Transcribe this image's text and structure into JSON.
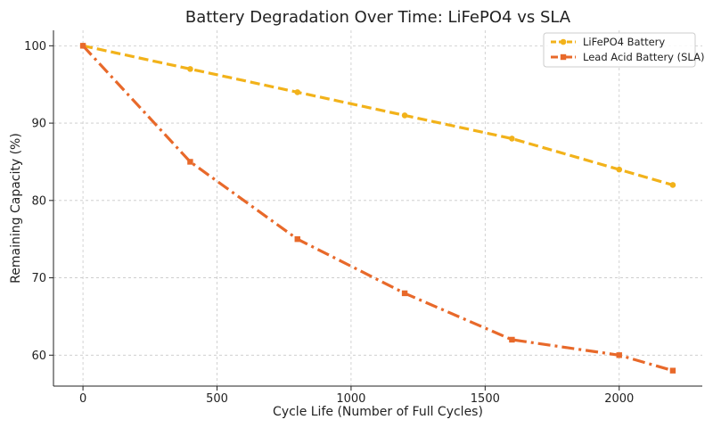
{
  "chart_data": {
    "type": "line",
    "title": "Battery Degradation Over Time: LiFePO4 vs SLA",
    "xlabel": "Cycle Life (Number of Full Cycles)",
    "ylabel": "Remaining Capacity (%)",
    "xlim": [
      -110,
      2310
    ],
    "ylim": [
      56,
      102
    ],
    "xticks": [
      0,
      500,
      1000,
      1500,
      2000
    ],
    "yticks": [
      60,
      70,
      80,
      90,
      100
    ],
    "grid": true,
    "legend_position": "top-right",
    "series": [
      {
        "name": "LiFePO4 Battery",
        "color": "#F2B21A",
        "line_style": "dashed",
        "marker": "circle",
        "x": [
          0,
          400,
          800,
          1200,
          1600,
          2000,
          2200
        ],
        "y": [
          100,
          97,
          94,
          91,
          88,
          84,
          82
        ]
      },
      {
        "name": "Lead Acid Battery (SLA)",
        "color": "#E8692A",
        "line_style": "dashdot",
        "marker": "square",
        "x": [
          0,
          400,
          800,
          1200,
          1600,
          2000,
          2200
        ],
        "y": [
          100,
          85,
          75,
          68,
          62,
          60,
          58
        ]
      }
    ]
  }
}
